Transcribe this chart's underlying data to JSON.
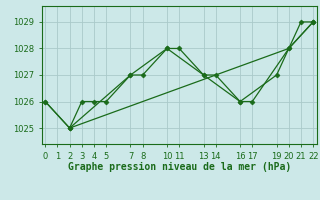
{
  "background_color": "#cce8e8",
  "grid_color": "#aacaca",
  "line_color": "#1a6b1a",
  "marker_color": "#1a6b1a",
  "title": "Graphe pression niveau de la mer (hPa)",
  "ylim": [
    1024.4,
    1029.6
  ],
  "yticks": [
    1025,
    1026,
    1027,
    1028,
    1029
  ],
  "xlim": [
    -0.3,
    22.3
  ],
  "series": [
    {
      "x": [
        0,
        2,
        3,
        4,
        5,
        7,
        8,
        10,
        11,
        13,
        14,
        16,
        17,
        20,
        22
      ],
      "y": [
        1026,
        1025,
        1026,
        1026,
        1026,
        1027,
        1027,
        1028,
        1028,
        1027,
        1027,
        1026,
        1026,
        1028,
        1029
      ]
    },
    {
      "x": [
        2,
        7,
        10,
        13,
        16,
        19,
        21,
        22
      ],
      "y": [
        1025,
        1027,
        1028,
        1027,
        1026,
        1027,
        1029,
        1029
      ]
    },
    {
      "x": [
        0,
        2,
        20,
        22
      ],
      "y": [
        1026,
        1025,
        1028,
        1029
      ]
    }
  ],
  "xtick_positions": [
    0,
    1,
    2,
    3,
    4,
    5,
    7,
    8,
    10,
    11,
    13,
    14,
    16,
    17,
    19,
    20,
    21,
    22
  ],
  "xtick_labels": [
    "0",
    "1",
    "2",
    "3",
    "4",
    "5",
    "7",
    "8",
    "10",
    "11",
    "13",
    "14",
    "16",
    "17",
    "19",
    "20",
    "21",
    "22"
  ],
  "title_fontsize": 7,
  "tick_fontsize": 6
}
